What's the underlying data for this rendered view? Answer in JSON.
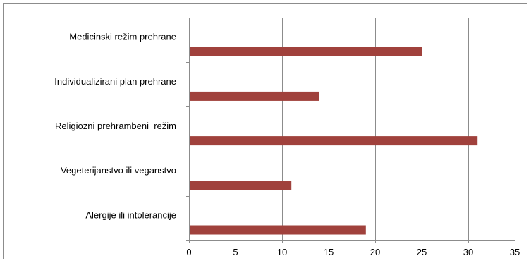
{
  "chart_data": {
    "type": "bar",
    "orientation": "horizontal",
    "title": "",
    "xlabel": "",
    "ylabel": "",
    "categories": [
      "Medicinski režim prehrane",
      "Individualizirani plan prehrane",
      "Religiozni prehrambeni  režim",
      "Vegeterijanstvo ili veganstvo",
      "Alergije ili intolerancije"
    ],
    "values": [
      25,
      14,
      31,
      11,
      19
    ],
    "xlim": [
      0,
      35
    ],
    "xticks": [
      "0",
      "5",
      "10",
      "15",
      "20",
      "25",
      "30",
      "35"
    ],
    "grid": "vertical",
    "legend": "none",
    "bar_color": "#a0413c",
    "grid_color": "#8c8c8c"
  }
}
